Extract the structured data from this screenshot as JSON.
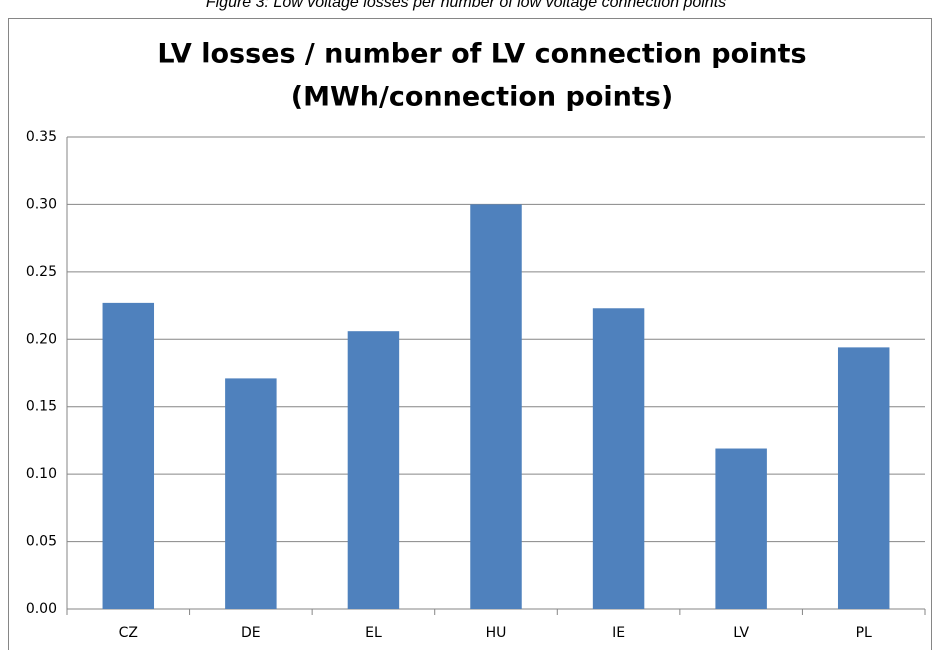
{
  "caption": "Figure 3: Low voltage losses per number of low voltage connection points",
  "chart_data": {
    "type": "bar",
    "title": [
      "LV losses / number of LV connection points",
      "(MWh/connection points)"
    ],
    "categories": [
      "CZ",
      "DE",
      "EL",
      "HU",
      "IE",
      "LV",
      "PL"
    ],
    "values": [
      0.227,
      0.171,
      0.206,
      0.3,
      0.223,
      0.119,
      0.194
    ],
    "color": "#4f81bd",
    "ylim": [
      0,
      0.35
    ],
    "yticks": [
      {
        "value": 0,
        "label": "0.00"
      },
      {
        "value": 0.05,
        "label": "0.05"
      },
      {
        "value": 0.1,
        "label": "0.10"
      },
      {
        "value": 0.15,
        "label": "0.15"
      },
      {
        "value": 0.2,
        "label": "0.20"
      },
      {
        "value": 0.25,
        "label": "0.25"
      },
      {
        "value": 0.3,
        "label": "0.30"
      },
      {
        "value": 0.35,
        "label": "0.35"
      }
    ],
    "grid": true
  }
}
